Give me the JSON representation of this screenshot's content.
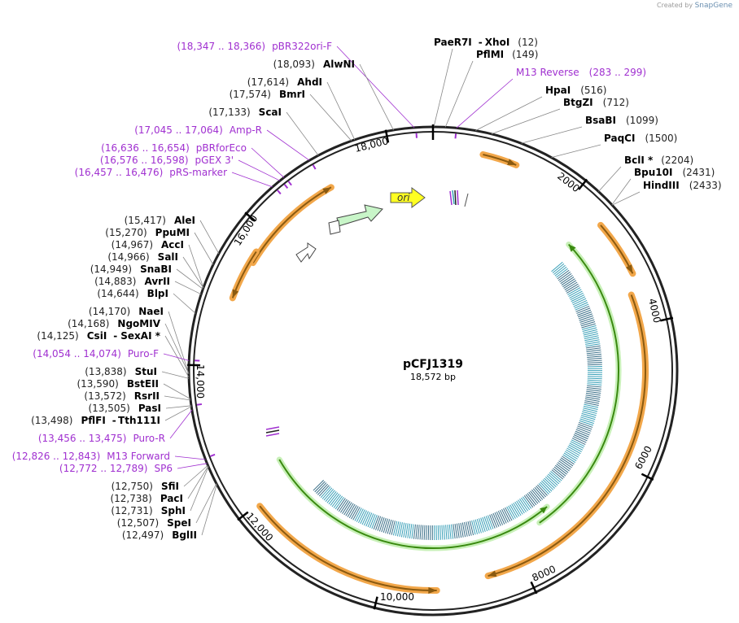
{
  "credit": {
    "prefix": "Created by",
    "brand": "SnapGene"
  },
  "plasmid": {
    "name": "pCFJ1319",
    "size_label": "18,572 bp",
    "total_bp": 18572
  },
  "ticks": [
    "2000",
    "4000",
    "6000",
    "8000",
    "10,000",
    "12,000",
    "14,000",
    "16,000",
    "18,000"
  ],
  "features": {
    "ori": "ori"
  },
  "right_labels": [
    {
      "pos": "(12)",
      "name": "PaeR7I",
      "name2": "XhoI"
    },
    {
      "pos": "(149)",
      "name": "PflMI"
    },
    {
      "pos": "(283 .. 299)",
      "name": "M13 Reverse",
      "feature": true
    },
    {
      "pos": "(516)",
      "name": "HpaI"
    },
    {
      "pos": "(712)",
      "name": "BtgZI"
    },
    {
      "pos": "(1099)",
      "name": "BsaBI"
    },
    {
      "pos": "(1500)",
      "name": "PaqCI"
    },
    {
      "pos": "(2204)",
      "name": "BclI *"
    },
    {
      "pos": "(2431)",
      "name": "Bpu10I"
    },
    {
      "pos": "(2433)",
      "name": "HindIII"
    }
  ],
  "left_labels": [
    {
      "pos": "(18,347 .. 18,366)",
      "name": "pBR322ori-F",
      "feature": true
    },
    {
      "pos": "(18,093)",
      "name": "AlwNI"
    },
    {
      "pos": "(17,614)",
      "name": "AhdI"
    },
    {
      "pos": "(17,574)",
      "name": "BmrI"
    },
    {
      "pos": "(17,133)",
      "name": "ScaI"
    },
    {
      "pos": "(17,045 .. 17,064)",
      "name": "Amp-R",
      "feature": true
    },
    {
      "pos": "(16,636 .. 16,654)",
      "name": "pBRforEco",
      "feature": true
    },
    {
      "pos": "(16,576 .. 16,598)",
      "name": "pGEX 3'",
      "feature": true
    },
    {
      "pos": "(16,457 .. 16,476)",
      "name": "pRS-marker",
      "feature": true
    },
    {
      "pos": "(15,417)",
      "name": "AleI"
    },
    {
      "pos": "(15,270)",
      "name": "PpuMI"
    },
    {
      "pos": "(14,967)",
      "name": "AccI"
    },
    {
      "pos": "(14,966)",
      "name": "SalI"
    },
    {
      "pos": "(14,949)",
      "name": "SnaBI"
    },
    {
      "pos": "(14,883)",
      "name": "AvrII"
    },
    {
      "pos": "(14,644)",
      "name": "BlpI"
    },
    {
      "pos": "(14,170)",
      "name": "NaeI"
    },
    {
      "pos": "(14,168)",
      "name": "NgoMIV"
    },
    {
      "pos": "(14,125)",
      "name": "CsiI",
      "name2": "SexAI *"
    },
    {
      "pos": "(14,054 .. 14,074)",
      "name": "Puro-F",
      "feature": true
    },
    {
      "pos": "(13,838)",
      "name": "StuI"
    },
    {
      "pos": "(13,590)",
      "name": "BstEII"
    },
    {
      "pos": "(13,572)",
      "name": "RsrII"
    },
    {
      "pos": "(13,505)",
      "name": "PasI"
    },
    {
      "pos": "(13,498)",
      "name": "PflFI",
      "name2": "Tth111I"
    },
    {
      "pos": "(13,456 .. 13,475)",
      "name": "Puro-R",
      "feature": true
    },
    {
      "pos": "(12,826 .. 12,843)",
      "name": "M13 Forward",
      "feature": true
    },
    {
      "pos": "(12,772 .. 12,789)",
      "name": "SP6",
      "feature": true
    },
    {
      "pos": "(12,750)",
      "name": "SfiI"
    },
    {
      "pos": "(12,738)",
      "name": "PacI"
    },
    {
      "pos": "(12,731)",
      "name": "SphI"
    },
    {
      "pos": "(12,507)",
      "name": "SpeI"
    },
    {
      "pos": "(12,497)",
      "name": "BglII"
    }
  ],
  "colors": {
    "feature_text": "#a030d0",
    "orange": "#f2a74a",
    "green": "#3a8a10",
    "teal": "#3aa0b8",
    "ori_yellow": "#ffff22"
  }
}
